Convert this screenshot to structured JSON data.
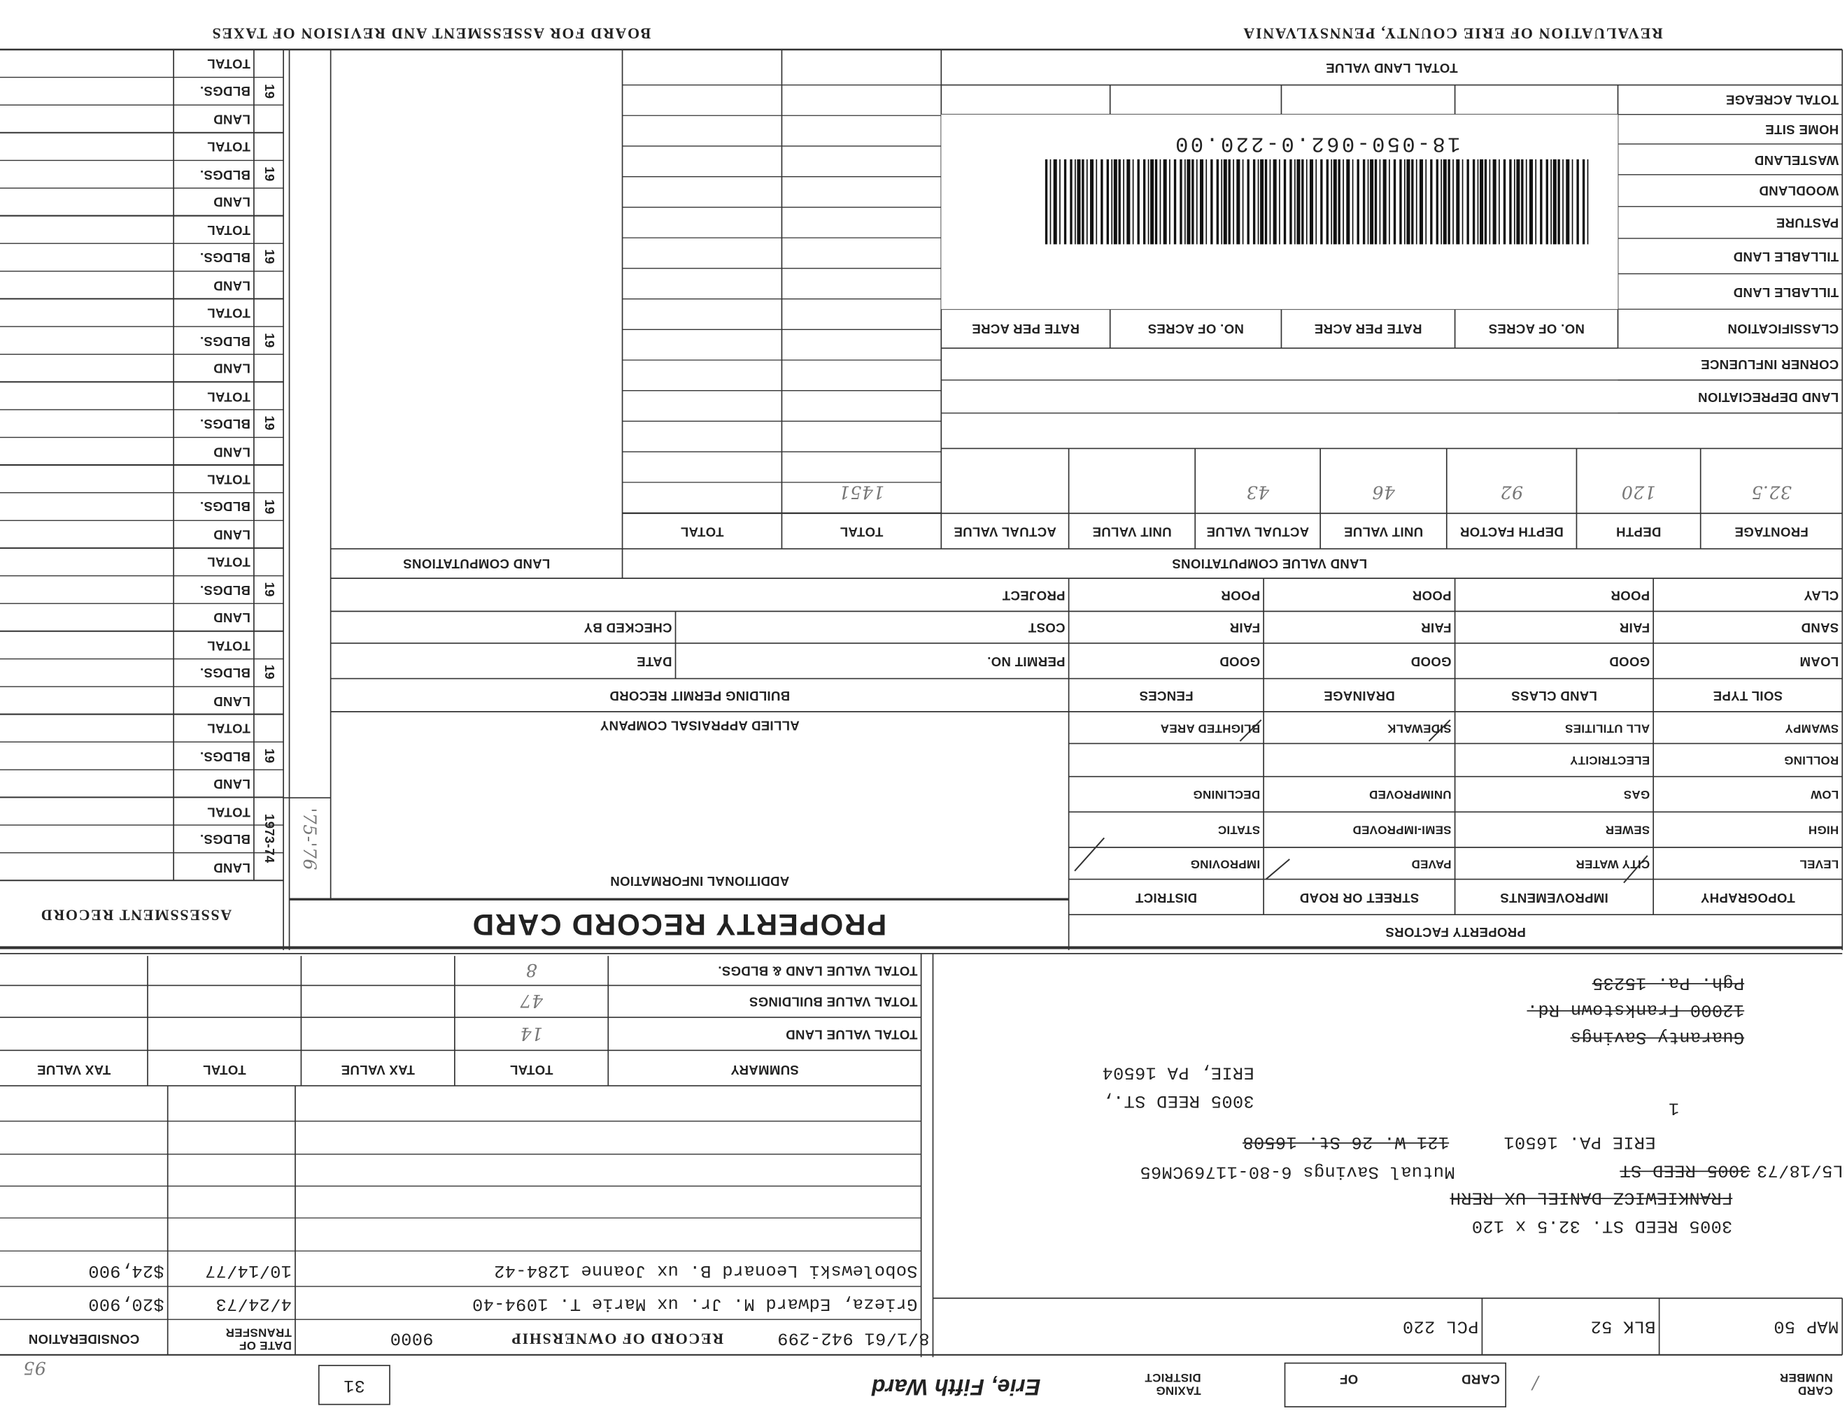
{
  "header": {
    "left_title": "REVALUATION OF ERIE COUNTY, PENNSYLVANIA",
    "right_title": "BOARD FOR ASSESSMENT AND REVISION OF TAXES"
  },
  "assessment_record": {
    "title": "ASSESSMENT RECORD",
    "extra_year": "'75-'76",
    "groups": [
      {
        "year": "1973-74",
        "rows": [
          "LAND",
          "BLDGS.",
          "TOTAL"
        ]
      },
      {
        "year": "19",
        "rows": [
          "LAND",
          "BLDGS.",
          "TOTAL"
        ]
      },
      {
        "year": "19",
        "rows": [
          "LAND",
          "BLDGS.",
          "TOTAL"
        ]
      },
      {
        "year": "19",
        "rows": [
          "LAND",
          "BLDGS.",
          "TOTAL"
        ]
      },
      {
        "year": "19",
        "rows": [
          "LAND",
          "BLDGS.",
          "TOTAL"
        ]
      },
      {
        "year": "19",
        "rows": [
          "LAND",
          "BLDGS.",
          "TOTAL"
        ]
      },
      {
        "year": "19",
        "rows": [
          "LAND",
          "BLDGS.",
          "TOTAL"
        ]
      },
      {
        "year": "19",
        "rows": [
          "LAND",
          "BLDGS.",
          "TOTAL"
        ]
      },
      {
        "year": "19",
        "rows": [
          "LAND",
          "BLDGS.",
          "TOTAL"
        ]
      },
      {
        "year": "19",
        "rows": [
          "LAND",
          "BLDGS.",
          "TOTAL"
        ]
      }
    ]
  },
  "land": {
    "total_land_value": "TOTAL LAND VALUE",
    "rows": [
      "LAND DEPRECIATION",
      "CORNER INFLUENCE",
      "CLASSIFICATION",
      "TILLABLE LAND",
      "TILLABLE LAND",
      "PASTURE",
      "WOODLAND",
      "WASTELAND",
      "HOME SITE",
      "TOTAL ACREAGE"
    ],
    "column_headers": [
      "NO. OF ACRES",
      "RATE PER ACRE",
      "NO. OF ACRES",
      "RATE PER ACRE"
    ],
    "parcel_id": "18-050-062.0-220.00"
  },
  "land_value_computations": {
    "title": "LAND VALUE COMPUTATIONS",
    "headers": [
      "FRONTAGE",
      "DEPTH",
      "DEPTH FACTOR",
      "UNIT VALUE",
      "ACTUAL VALUE",
      "UNIT VALUE",
      "ACTUAL VALUE",
      "TOTAL",
      "TOTAL"
    ],
    "handwritten": {
      "frontage": "32.5",
      "depth": "120",
      "depth_factor": "92",
      "unit_value": "46",
      "actual_value": "43",
      "total": "1451"
    }
  },
  "land_computations": {
    "title": "LAND COMPUTATIONS"
  },
  "property_factors": {
    "title": "PROPERTY FACTORS",
    "columns": [
      {
        "header": "TOPOGRAPHY",
        "items": [
          "LEVEL",
          "HIGH",
          "LOW",
          "ROLLING",
          "SWAMPY"
        ]
      },
      {
        "header": "IMPROVEMENTS",
        "items": [
          "CITY WATER",
          "SEWER",
          "GAS",
          "ELECTRICITY",
          "ALL UTILITIES"
        ]
      },
      {
        "header": "STREET OR ROAD",
        "items": [
          "PAVED",
          "SEMI-IMPROVED",
          "UNIMPROVED",
          null,
          "SIDEWALK"
        ]
      },
      {
        "header": "DISTRICT",
        "items": [
          "IMPROVING",
          "STATIC",
          "DECLINING",
          null,
          "BLIGHTED AREA"
        ]
      }
    ],
    "soil_columns": [
      {
        "header": "SOIL TYPE",
        "items": [
          "LOAM",
          "SAND",
          "CLAY"
        ]
      },
      {
        "header": "LAND CLASS",
        "items": [
          "GOOD",
          "FAIR",
          "POOR"
        ]
      },
      {
        "header": "DRAINAGE",
        "items": [
          "GOOD",
          "FAIR",
          "POOR"
        ]
      },
      {
        "header": "FENCES",
        "items": [
          "GOOD",
          "FAIR",
          "POOR"
        ]
      }
    ]
  },
  "building_permit": {
    "title": "BUILDING PERMIT RECORD",
    "permit_no": "PERMIT NO.",
    "date": "DATE",
    "cost": "COST",
    "checked_by": "CHECKED BY",
    "project": "PROJECT"
  },
  "appraiser": "ALLIED APPRAISAL COMPANY",
  "additional_information": "ADDITIONAL INFORMATION",
  "card_title": "PROPERTY RECORD CARD",
  "summary": {
    "headers": [
      "SUMMARY",
      "TOTAL",
      "TAX VALUE",
      "TOTAL",
      "TAX VALUE"
    ],
    "rows": [
      "TOTAL VALUE LAND",
      "TOTAL VALUE BUILDINGS",
      "TOTAL VALUE LAND & BLDGS."
    ],
    "handwritten": [
      "14",
      "47",
      "8"
    ]
  },
  "ownership": {
    "record_ref": "8/1/61  942-299",
    "header": "RECORD OF OWNERSHIP",
    "code": "9000",
    "date_header": "DATE OF TRANSFER",
    "consideration_header": "CONSIDERATION",
    "entries": [
      {
        "name": "Grieza, Edward M. Jr. ux Marie T. 1094-40",
        "date": "4/24/73",
        "consideration": "$20,900"
      },
      {
        "name": "Sobolewski Leonard B. ux Joanne 1284-42",
        "date": "10/14/77",
        "consideration": "$24,900"
      }
    ],
    "note": "95"
  },
  "address": {
    "lines": [
      {
        "text": "3005 REED ST.  32.5 x 120",
        "struck": false
      },
      {
        "text": "FRANKIEWICZ DANIEL  UX RERH",
        "struck": true
      },
      {
        "text": "L5/18/73",
        "struck": false
      },
      {
        "text": "3005 REED ST",
        "struck": true
      },
      {
        "text": "Mutual Savings 6-80-11769CM65",
        "struck": false
      },
      {
        "text": "ERIE PA. 16501",
        "struck": false
      },
      {
        "text": "121 W. 26 St. 16508",
        "struck": true
      },
      {
        "text": "1",
        "struck": false
      },
      {
        "text": "3005 REED ST.,",
        "struck": false
      },
      {
        "text": "ERIE, PA 16504",
        "struck": false
      },
      {
        "text": "Guaranty Savings",
        "struck": true
      },
      {
        "text": "12000 Frankstown Rd.",
        "struck": true
      },
      {
        "text": "Pgh. Pa. 15235",
        "struck": true
      }
    ]
  },
  "map": {
    "map": "MAP 50",
    "blk": "BLK 52",
    "pcl": "PCL 220"
  },
  "card_footer": {
    "card_number_label": "CARD NUMBER",
    "card_number": "/",
    "card_label": "CARD",
    "of_label": "OF",
    "taxing_district_label": "TAXING DISTRICT",
    "taxing_district": "Erie, Fifth Ward",
    "ward_number": "31"
  }
}
